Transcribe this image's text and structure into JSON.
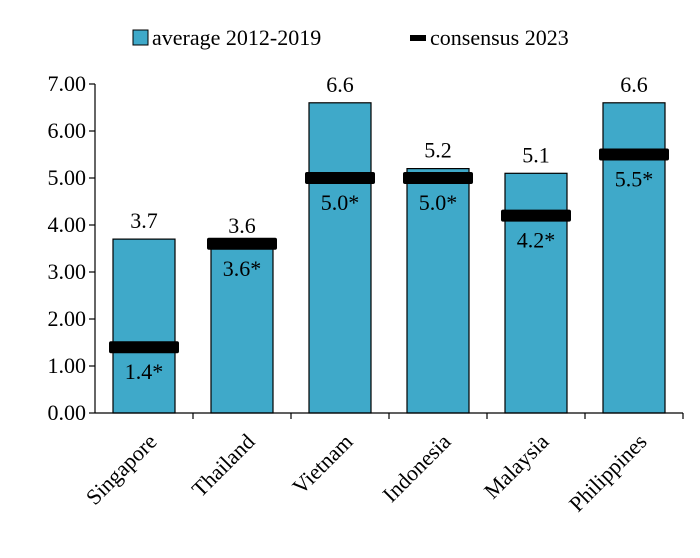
{
  "chart_data": {
    "type": "bar",
    "categories": [
      "Singapore",
      "Thailand",
      "Vietnam",
      "Indonesia",
      "Malaysia",
      "Philippines"
    ],
    "series": [
      {
        "name": "average 2012-2019",
        "values": [
          3.7,
          3.6,
          6.6,
          5.2,
          5.1,
          6.6
        ],
        "labels": [
          "3.7",
          "3.6",
          "6.6",
          "5.2",
          "5.1",
          "6.6"
        ],
        "color": "#3fa9c9"
      },
      {
        "name": "consensus 2023",
        "values": [
          1.4,
          3.6,
          5.0,
          5.0,
          4.2,
          5.5
        ],
        "labels": [
          "1.4*",
          "3.6*",
          "5.0*",
          "5.0*",
          "4.2*",
          "5.5*"
        ],
        "color": "#000000"
      }
    ],
    "ylim": [
      0,
      7
    ],
    "yticks": [
      "0.00",
      "1.00",
      "2.00",
      "3.00",
      "4.00",
      "5.00",
      "6.00",
      "7.00"
    ],
    "legend_position": "top",
    "grid": false
  }
}
